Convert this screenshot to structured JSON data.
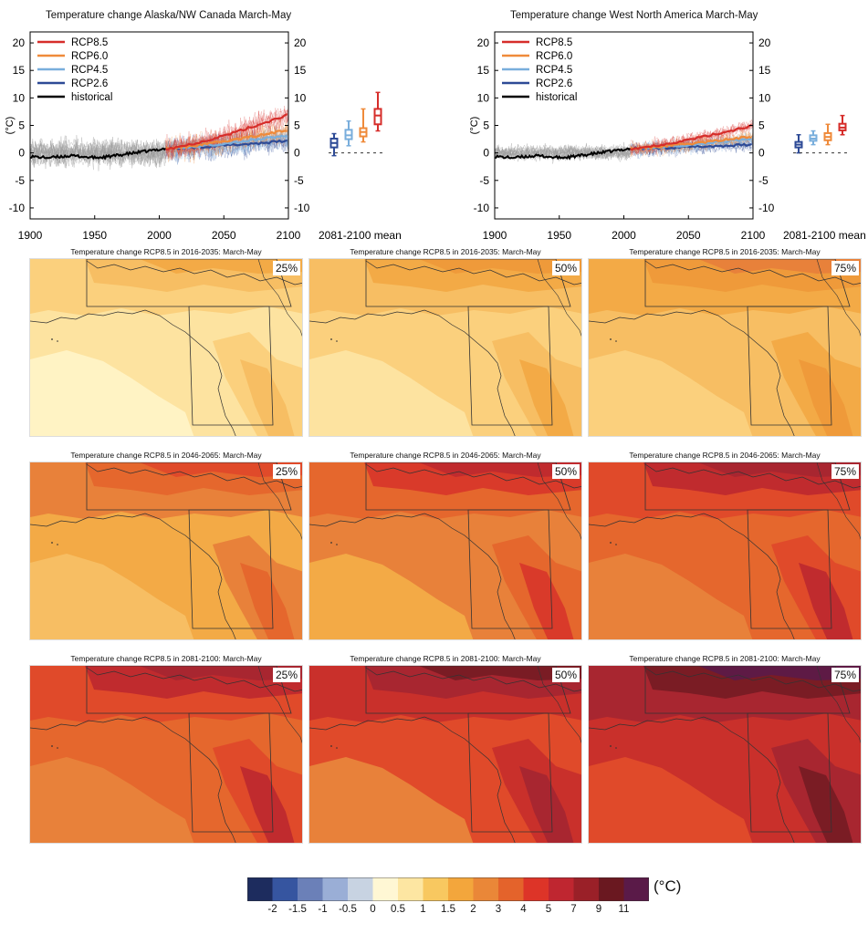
{
  "timeseries": [
    {
      "title": "Temperature change Alaska/NW Canada March-May",
      "ylabel": "(°C)",
      "xlim": [
        1900,
        2100
      ],
      "ylim": [
        -12,
        22
      ],
      "xticks": [
        "1900",
        "1950",
        "2000",
        "2050",
        "2100"
      ],
      "yticks": [
        "20",
        "15",
        "10",
        "5",
        "0",
        "-5",
        "-10"
      ],
      "boxplot_label": "2081-2100 mean",
      "legend": [
        "RCP8.5",
        "RCP6.0",
        "RCP4.5",
        "RCP2.6",
        "historical"
      ],
      "mean_end": {
        "rcp85": 7.0,
        "rcp60": 4.2,
        "rcp45": 3.2,
        "rcp26": 2.2
      },
      "boxes": [
        {
          "series": "RCP2.6",
          "min": -0.5,
          "q1": 1.0,
          "median": 1.8,
          "q3": 2.6,
          "max": 3.5
        },
        {
          "series": "RCP4.5",
          "min": 1.3,
          "q1": 2.5,
          "median": 3.2,
          "q3": 4.2,
          "max": 5.8
        },
        {
          "series": "RCP6.0",
          "min": 2.0,
          "q1": 3.0,
          "median": 3.8,
          "q3": 4.5,
          "max": 8.0
        },
        {
          "series": "RCP8.5",
          "min": 4.0,
          "q1": 5.2,
          "median": 6.8,
          "q3": 8.0,
          "max": 11.0
        }
      ]
    },
    {
      "title": "Temperature change West North America March-May",
      "ylabel": "(°C)",
      "xlim": [
        1900,
        2100
      ],
      "ylim": [
        -12,
        22
      ],
      "xticks": [
        "1900",
        "1950",
        "2000",
        "2050",
        "2100"
      ],
      "yticks": [
        "20",
        "15",
        "10",
        "5",
        "0",
        "-5",
        "-10"
      ],
      "boxplot_label": "2081-2100 mean",
      "legend": [
        "RCP8.5",
        "RCP6.0",
        "RCP4.5",
        "RCP2.6",
        "historical"
      ],
      "mean_end": {
        "rcp85": 5.0,
        "rcp60": 3.0,
        "rcp45": 2.6,
        "rcp26": 1.5
      },
      "boxes": [
        {
          "series": "RCP2.6",
          "min": 0.0,
          "q1": 1.0,
          "median": 1.5,
          "q3": 2.0,
          "max": 3.3
        },
        {
          "series": "RCP4.5",
          "min": 1.5,
          "q1": 2.2,
          "median": 2.6,
          "q3": 3.2,
          "max": 4.0
        },
        {
          "series": "RCP6.0",
          "min": 1.5,
          "q1": 2.3,
          "median": 2.9,
          "q3": 3.6,
          "max": 5.2
        },
        {
          "series": "RCP8.5",
          "min": 3.3,
          "q1": 4.1,
          "median": 4.6,
          "q3": 5.3,
          "max": 6.8
        }
      ]
    }
  ],
  "colors": {
    "rcp85": "#d62d2a",
    "rcp60": "#ef8a3a",
    "rcp45": "#79aedc",
    "rcp26": "#2d4a96",
    "historical": "#000000",
    "hist_spread": "#9a9a9a"
  },
  "maps": [
    {
      "title": "Temperature change RCP8.5 in 2016-2035: March-May",
      "pct": "25%"
    },
    {
      "title": "Temperature change RCP8.5 in 2016-2035: March-May",
      "pct": "50%"
    },
    {
      "title": "Temperature change RCP8.5 in 2016-2035: March-May",
      "pct": "75%"
    },
    {
      "title": "Temperature change RCP8.5 in 2046-2065: March-May",
      "pct": "25%"
    },
    {
      "title": "Temperature change RCP8.5 in 2046-2065: March-May",
      "pct": "50%"
    },
    {
      "title": "Temperature change RCP8.5 in 2046-2065: March-May",
      "pct": "75%"
    },
    {
      "title": "Temperature change RCP8.5 in 2081-2100: March-May",
      "pct": "25%"
    },
    {
      "title": "Temperature change RCP8.5 in 2081-2100: March-May",
      "pct": "50%"
    },
    {
      "title": "Temperature change RCP8.5 in 2081-2100: March-May",
      "pct": "75%"
    }
  ],
  "map_palettes": [
    [
      "#fff3c4",
      "#fde3a0",
      "#fbd07d",
      "#f7be63",
      "#f3aa46"
    ],
    [
      "#fde3a0",
      "#fbd07d",
      "#f7be63",
      "#f3aa46",
      "#ef9a3a"
    ],
    [
      "#fbd07d",
      "#f7be63",
      "#f3aa46",
      "#ef9a3a",
      "#e8813a"
    ],
    [
      "#f7be63",
      "#f3aa46",
      "#e8813a",
      "#e5672d",
      "#e04a2a"
    ],
    [
      "#f3aa46",
      "#e8813a",
      "#e5672d",
      "#d93a2a",
      "#c02b2e"
    ],
    [
      "#e8813a",
      "#e5672d",
      "#e04a2a",
      "#c02b2e",
      "#a82630"
    ],
    [
      "#e8813a",
      "#e5672d",
      "#e04a2a",
      "#c02b2e",
      "#a82630"
    ],
    [
      "#e8813a",
      "#e04a2a",
      "#c9302b",
      "#a82630",
      "#7a1c24"
    ],
    [
      "#e04a2a",
      "#c9302b",
      "#a82630",
      "#7a1c24",
      "#5e1a45"
    ]
  ],
  "colorbar": {
    "unit": "(°C)",
    "labels": [
      "-2",
      "-1.5",
      "-1",
      "-0.5",
      "0",
      "0.5",
      "1",
      "1.5",
      "2",
      "3",
      "4",
      "5",
      "7",
      "9",
      "11"
    ],
    "colors": [
      "#1d2c5e",
      "#3655a0",
      "#6b80b8",
      "#9aaed6",
      "#c8d3e2",
      "#fff7d4",
      "#fde6a2",
      "#f8c860",
      "#f3a63c",
      "#ea8738",
      "#e4632b",
      "#dd3428",
      "#bf2630",
      "#9a2028",
      "#6a1820",
      "#5a1a48"
    ]
  }
}
